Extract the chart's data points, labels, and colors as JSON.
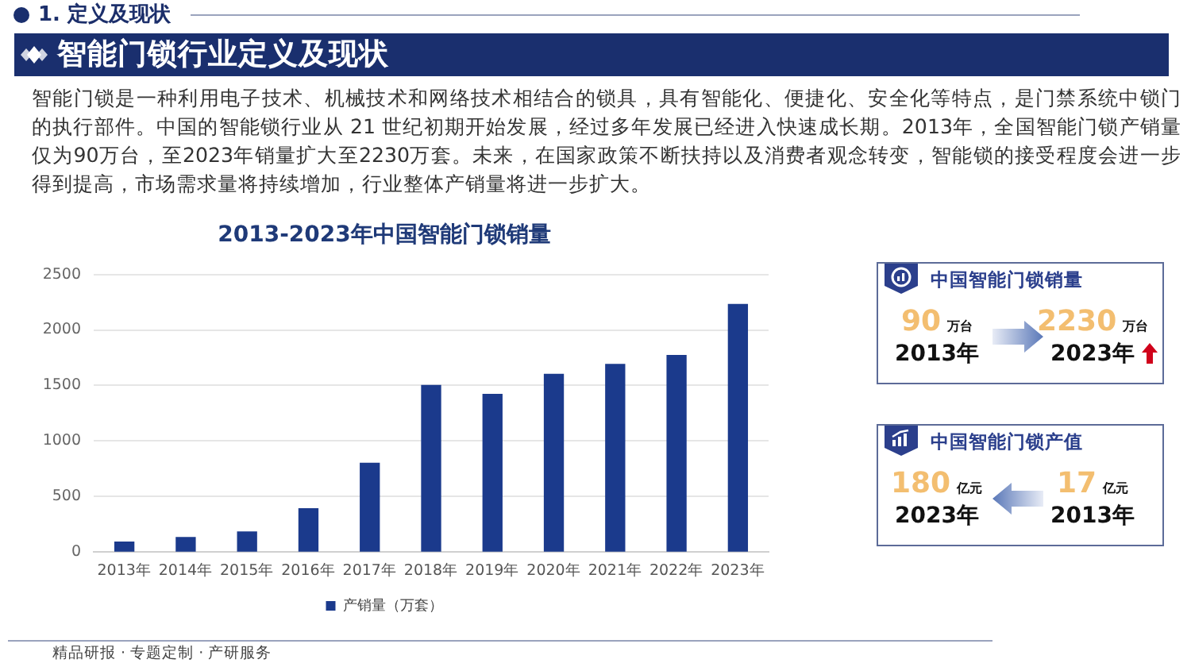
{
  "chart_data": [
    {
      "type": "bar",
      "title": "2013-2023年中国智能门锁销量",
      "categories": [
        "2013年",
        "2014年",
        "2015年",
        "2016年",
        "2017年",
        "2018年",
        "2019年",
        "2020年",
        "2021年",
        "2022年",
        "2023年"
      ],
      "series": [
        {
          "name": "产销量（万套）",
          "color": "#1b3a8c",
          "values": [
            90,
            130,
            180,
            390,
            800,
            1500,
            1420,
            1600,
            1690,
            1770,
            2230
          ]
        }
      ],
      "ylim": [
        0,
        2500
      ],
      "yticks": [
        0,
        500,
        1000,
        1500,
        2000,
        2500
      ],
      "grid": "y",
      "legend": "bottom",
      "annotations": [
        "1. 定义及现状",
        "智能门锁行业定义及现状",
        "智能门锁是一种利用电子技术、机械技术和网络技术相结合的锁具，具有智能化、便捷化、安全化等特点，是门禁系统中锁门的执行部件。中国的智能锁行业从 21 世纪初期开始发展，经过多年发展已经进入快速成长期。2013年，全国智能门锁产销量仅为90万台，至2023年销量扩大至2230万套。未来，在国家政策不断扶持以及消费者观念转变，智能锁的接受程度会进一步得到提高，市场需求量将持续增加，行业整体产销量将进一步扩大。",
        "精品研报 · 专题定制 · 产研服务"
      ]
    },
    {
      "type": "other",
      "title": "中国智能门锁销量",
      "annotations": [
        "90",
        "万台",
        "2013年",
        "2230",
        "万台",
        "2023年"
      ]
    },
    {
      "type": "other",
      "title": "中国智能门锁产值",
      "annotations": [
        "180",
        "亿元",
        "2023年",
        "17",
        "亿元",
        "2013年"
      ]
    }
  ]
}
